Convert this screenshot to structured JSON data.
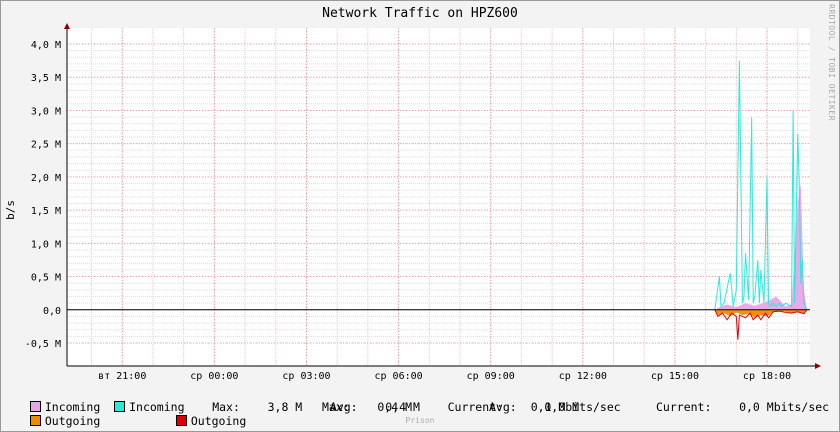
{
  "chart_data": {
    "type": "area",
    "title": "Network Traffic on HPZ600",
    "ylabel": "b/s",
    "ylim": [
      -0.5,
      4.0
    ],
    "y_ticks": [
      {
        "v": 4.0,
        "label": "4,0 M"
      },
      {
        "v": 3.5,
        "label": "3,5 M"
      },
      {
        "v": 3.0,
        "label": "3,0 M"
      },
      {
        "v": 2.5,
        "label": "2,5 M"
      },
      {
        "v": 2.0,
        "label": "2,0 M"
      },
      {
        "v": 1.5,
        "label": "1,5 M"
      },
      {
        "v": 1.0,
        "label": "1,0 M"
      },
      {
        "v": 0.5,
        "label": "0,5 M"
      },
      {
        "v": 0.0,
        "label": "0,0"
      },
      {
        "v": -0.5,
        "label": "-0,5 M"
      }
    ],
    "x_ticks": [
      "вт 21:00",
      "ср 00:00",
      "ср 03:00",
      "ср 06:00",
      "ср 09:00",
      "ср 12:00",
      "ср 15:00",
      "ср 18:00"
    ],
    "xlim_hours": [
      19.2,
      43.4
    ],
    "grid": true,
    "series": [
      {
        "name": "Incoming",
        "color": "#e8a5e8",
        "style": "area",
        "x": [
          40.3,
          40.5,
          40.7,
          41.0,
          41.3,
          41.6,
          41.8,
          42.0,
          42.3,
          42.6,
          42.8,
          43.0,
          43.1,
          43.2,
          43.3
        ],
        "y": [
          0.0,
          0.05,
          0.08,
          0.04,
          0.1,
          0.06,
          0.09,
          0.12,
          0.2,
          0.05,
          0.08,
          1.6,
          1.9,
          0.3,
          0.0
        ]
      },
      {
        "name": "Incoming",
        "color": "#2ee8de",
        "style": "line",
        "x": [
          40.3,
          40.45,
          40.5,
          40.6,
          40.8,
          40.9,
          41.0,
          41.1,
          41.2,
          41.25,
          41.3,
          41.4,
          41.5,
          41.55,
          41.6,
          41.7,
          41.75,
          41.8,
          41.9,
          42.0,
          42.05,
          42.1,
          42.2,
          42.3,
          42.4,
          42.5,
          42.6,
          42.8,
          42.85,
          42.9,
          43.0,
          43.05,
          43.1,
          43.15,
          43.2,
          43.25,
          43.3
        ],
        "y": [
          0.0,
          0.5,
          0.05,
          0.1,
          0.55,
          0.05,
          0.3,
          3.75,
          0.1,
          0.2,
          0.85,
          0.15,
          2.9,
          0.1,
          0.2,
          0.75,
          0.1,
          0.6,
          0.1,
          2.0,
          0.1,
          0.05,
          0.1,
          0.05,
          0.1,
          0.05,
          0.1,
          0.05,
          3.0,
          0.1,
          2.65,
          1.9,
          0.4,
          0.75,
          0.1,
          0.05,
          0.0
        ]
      },
      {
        "name": "Outgoing",
        "color": "#f28a00",
        "style": "area",
        "x": [
          40.3,
          40.4,
          40.6,
          40.8,
          41.0,
          41.2,
          41.4,
          41.6,
          41.8,
          42.0,
          42.2,
          42.4,
          42.6,
          42.8,
          43.0,
          43.2,
          43.3
        ],
        "y": [
          0.0,
          -0.08,
          -0.05,
          -0.1,
          -0.04,
          -0.08,
          -0.06,
          -0.12,
          -0.08,
          -0.1,
          -0.03,
          -0.02,
          -0.03,
          -0.05,
          -0.03,
          -0.06,
          0.0
        ]
      },
      {
        "name": "Outgoing",
        "color": "#e00000",
        "style": "line",
        "x": [
          40.3,
          40.4,
          40.55,
          40.7,
          40.85,
          41.0,
          41.05,
          41.1,
          41.3,
          41.45,
          41.55,
          41.7,
          41.8,
          41.95,
          42.05,
          42.2,
          42.4,
          42.6,
          42.8,
          43.0,
          43.2,
          43.3
        ],
        "y": [
          0.0,
          -0.1,
          -0.05,
          -0.15,
          -0.05,
          -0.1,
          -0.45,
          -0.08,
          -0.12,
          -0.05,
          -0.15,
          -0.08,
          -0.15,
          -0.05,
          -0.12,
          -0.03,
          -0.02,
          -0.04,
          -0.05,
          -0.03,
          -0.06,
          0.0
        ]
      }
    ]
  },
  "legend": {
    "row1": {
      "in_area_label": "Incoming",
      "in_line_label": "Incoming",
      "stats": "Max:    3,8 M    Avg:    0,4 M    Current:    0,1 Mbits/sec"
    },
    "row2": {
      "out_area_label": "Outgoing",
      "out_line_label": "Outgoing",
      "max": "Max:    0,4 M",
      "avg": "Avg:    0,0 M",
      "current": "Current:    0,0 Mbits/sec"
    }
  },
  "watermark": "RRDTOOL / TOBI OETIKER",
  "footer": "Prison"
}
